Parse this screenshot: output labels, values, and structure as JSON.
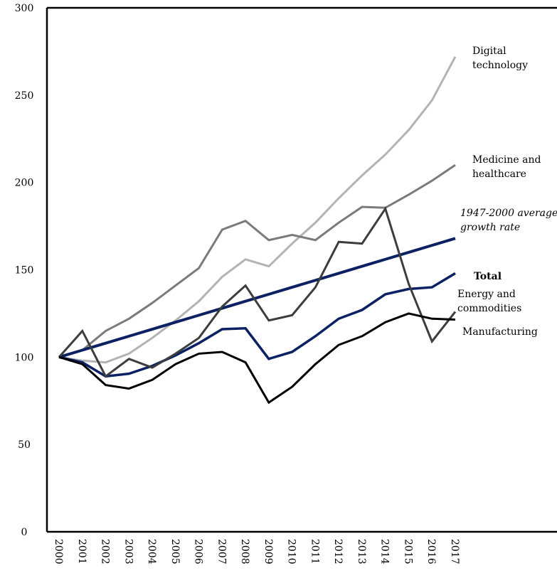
{
  "chart_data": {
    "type": "line",
    "x": [
      "2000",
      "2001",
      "2002",
      "2003",
      "2004",
      "2005",
      "2006",
      "2007",
      "2008",
      "2009",
      "2010",
      "2011",
      "2012",
      "2013",
      "2014",
      "2015",
      "2016",
      "2017"
    ],
    "ylim": [
      0,
      300
    ],
    "yticks": [
      0,
      50,
      100,
      150,
      200,
      250,
      300
    ],
    "series": [
      {
        "name": "Digital technology",
        "color": "#b3b3b3",
        "values": [
          100,
          98,
          97,
          102,
          111,
          121,
          132,
          146,
          156,
          152,
          165,
          177,
          191,
          204,
          216,
          230,
          247,
          272
        ]
      },
      {
        "name": "Medicine and healthcare",
        "color": "#7a7a7a",
        "values": [
          100,
          104,
          115,
          122,
          131,
          141,
          151,
          173,
          178,
          167,
          170,
          167,
          177,
          186,
          185.5,
          193,
          201,
          210
        ]
      },
      {
        "name": "1947-2000 average growth rate",
        "color": "#0b2163",
        "values": [
          100,
          104,
          108,
          112,
          116,
          120,
          124,
          128,
          132,
          136,
          140,
          144,
          148,
          152,
          156,
          160,
          164,
          168
        ]
      },
      {
        "name": "Total",
        "color": "#0b2163",
        "values": [
          100,
          97,
          89,
          90.5,
          95,
          101,
          108,
          116,
          116.5,
          99,
          103,
          112,
          122,
          127,
          136,
          139,
          140,
          148
        ]
      },
      {
        "name": "Energy and commodities",
        "color": "#3d3d3d",
        "values": [
          100,
          115,
          89,
          99,
          94,
          102,
          111,
          129,
          141,
          121,
          124,
          140,
          166,
          165,
          185,
          142,
          109,
          126
        ]
      },
      {
        "name": "Manufacturing",
        "color": "#000000",
        "values": [
          100,
          96,
          84,
          82,
          87,
          96,
          102,
          103,
          97,
          74,
          83,
          96,
          107,
          112,
          120,
          125,
          122,
          121.5
        ]
      }
    ]
  }
}
